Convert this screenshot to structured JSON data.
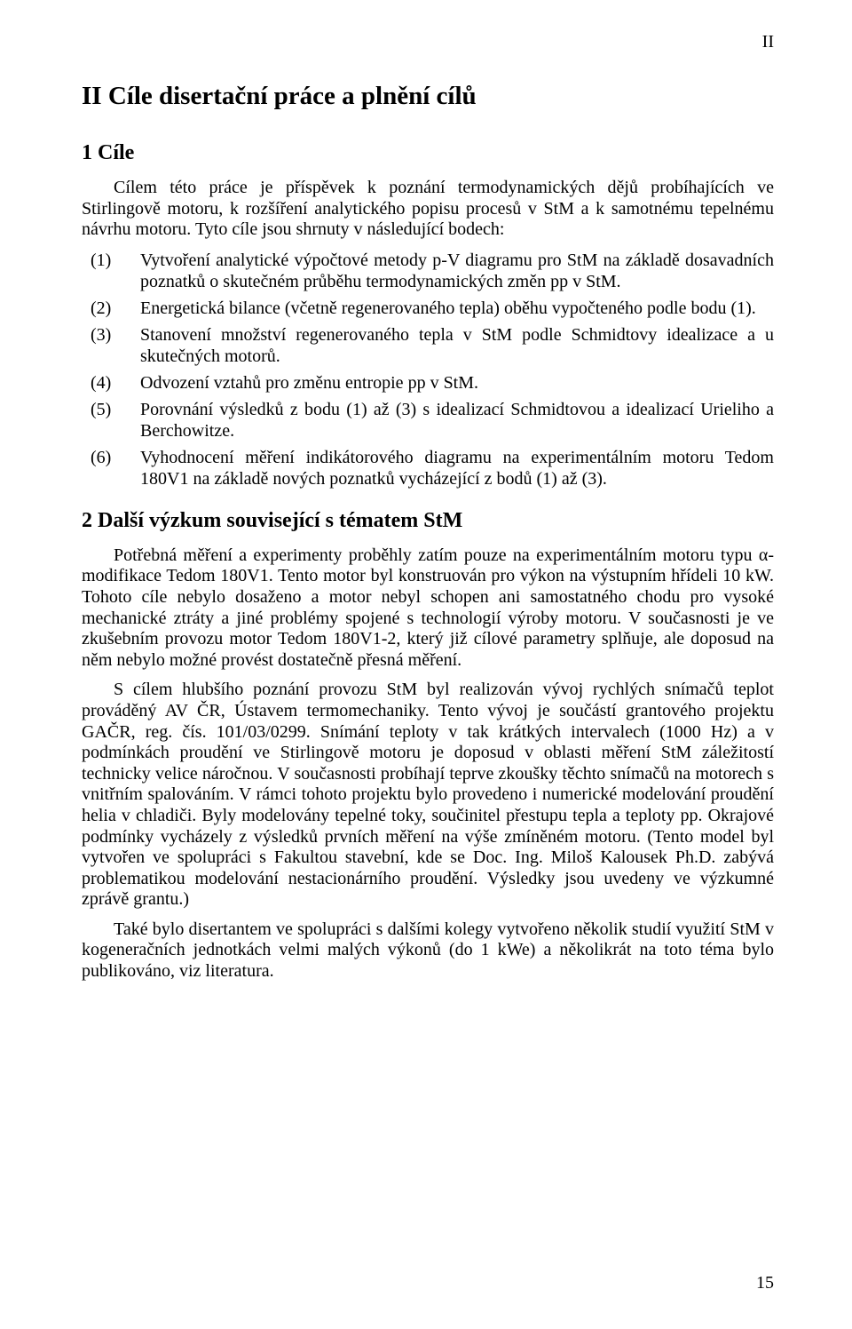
{
  "page": {
    "top_roman": "II",
    "chapter_label": "II    Cíle disertační práce a plnění cílů",
    "page_number": "15"
  },
  "sec1": {
    "heading": "1    Cíle",
    "intro": "Cílem této práce je příspěvek k poznání termodynamických dějů probíhajících ve Stirlingově motoru, k rozšíření analytického popisu procesů v StM a k samotnému tepelnému návrhu motoru. Tyto cíle jsou shrnuty v následující bodech:",
    "items": [
      {
        "m": "(1)",
        "t": "Vytvoření analytické výpočtové metody p-V diagramu pro StM na základě dosavadních poznatků o skutečném průběhu termodynamických změn pp v StM."
      },
      {
        "m": "(2)",
        "t": "Energetická bilance (včetně regenerovaného tepla) oběhu vypočteného podle bodu (1)."
      },
      {
        "m": "(3)",
        "t": "Stanovení množství regenerovaného tepla v StM podle Schmidtovy idealizace a u skutečných motorů."
      },
      {
        "m": "(4)",
        "t": "Odvození vztahů pro změnu entropie pp v StM."
      },
      {
        "m": "(5)",
        "t": "Porovnání výsledků z bodu (1) až (3) s idealizací Schmidtovou a idealizací Urieliho a Berchowitze."
      },
      {
        "m": "(6)",
        "t": "Vyhodnocení měření indikátorového diagramu na experimentálním motoru Tedom 180V1 na základě nových poznatků vycházející z bodů (1) až (3)."
      }
    ]
  },
  "sec2": {
    "heading": "2    Další výzkum související s tématem StM",
    "p1": "Potřebná měření a experimenty proběhly zatím pouze na experimentálním motoru typu α-modifikace Tedom 180V1. Tento motor byl konstruován pro výkon na výstupním hřídeli 10 kW. Tohoto cíle nebylo dosaženo a motor nebyl schopen ani samostatného chodu pro vysoké mechanické ztráty a jiné problémy spojené s technologií výroby motoru. V současnosti je ve zkušebním provozu motor Tedom 180V1-2, který již cílové parametry splňuje, ale doposud na něm nebylo možné provést dostatečně přesná měření.",
    "p2": "S cílem hlubšího poznání provozu StM byl realizován vývoj rychlých snímačů teplot prováděný AV ČR, Ústavem termomechaniky. Tento vývoj je součástí grantového projektu GAČR, reg. čís. 101/03/0299. Snímání teploty v tak krátkých intervalech (1000 Hz) a v podmínkách proudění ve Stirlingově motoru je doposud v oblasti měření StM záležitostí technicky velice náročnou. V současnosti probíhají teprve zkoušky těchto snímačů na motorech s vnitřním spalováním. V rámci tohoto projektu bylo provedeno i numerické modelování proudění helia v chladiči. Byly modelovány tepelné toky, součinitel přestupu tepla a teploty pp. Okrajové podmínky vycházely z výsledků prvních měření na výše zmíněném motoru. (Tento model byl vytvořen ve spolupráci s Fakultou stavební, kde se Doc. Ing. Miloš Kalousek Ph.D. zabývá problematikou modelování nestacionárního proudění. Výsledky jsou uvedeny ve výzkumné zprávě grantu.)",
    "p3": "Také bylo disertantem ve spolupráci s dalšími kolegy vytvořeno několik studií využití StM v kogeneračních jednotkách velmi malých výkonů (do 1 kWe) a několikrát na toto téma bylo publikováno, viz literatura."
  }
}
